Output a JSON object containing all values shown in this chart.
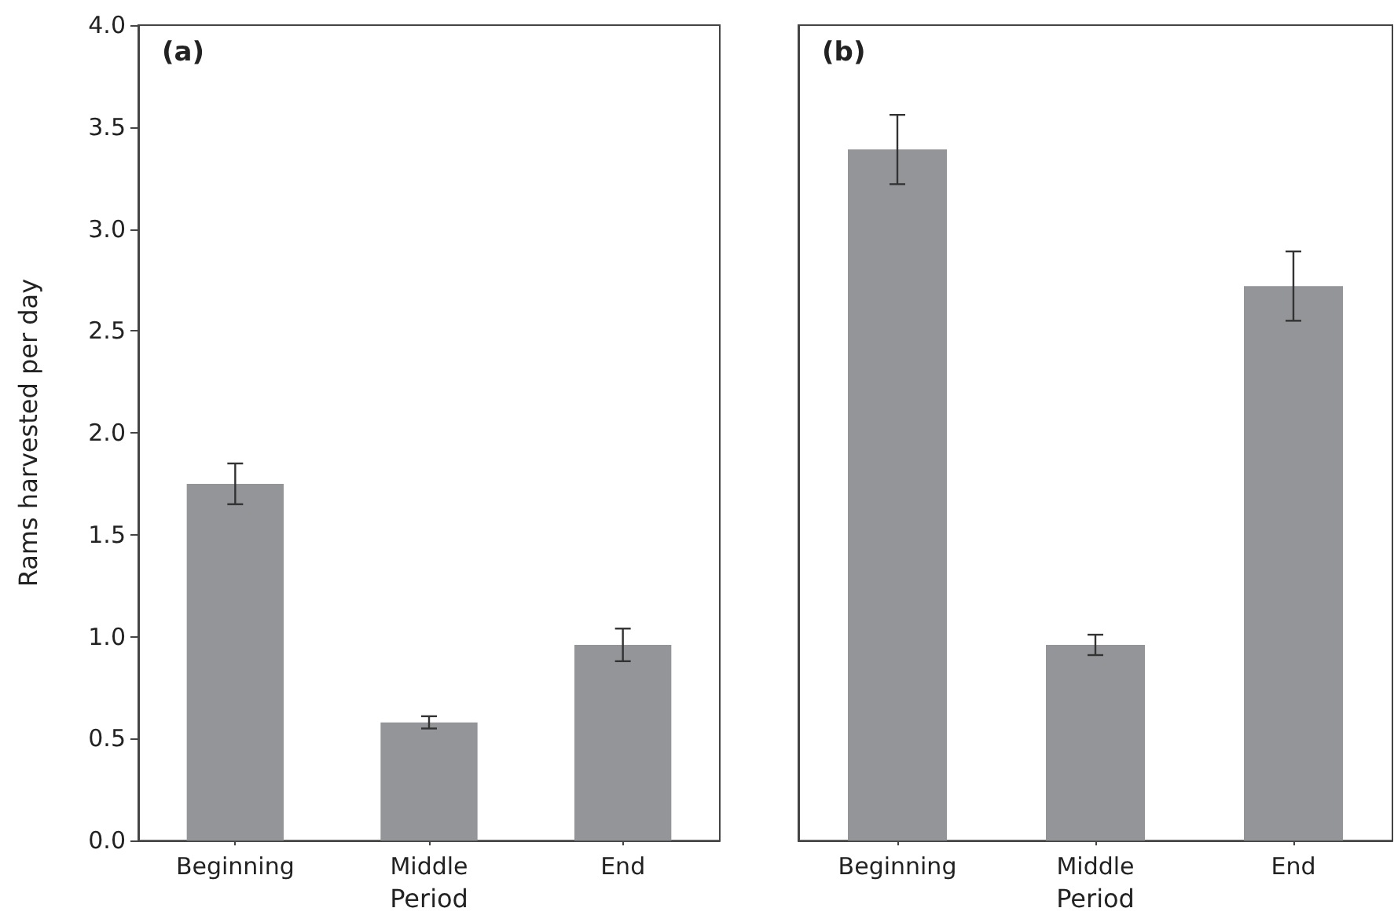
{
  "chart_data": [
    {
      "type": "bar",
      "title": "(a)",
      "xlabel": "Period",
      "ylabel": "Rams harvested per day",
      "categories": [
        "Beginning",
        "Middle",
        "End"
      ],
      "values": [
        1.75,
        0.58,
        0.96
      ],
      "errors": [
        0.1,
        0.03,
        0.08
      ],
      "color": "#939598",
      "ylim": [
        0,
        4
      ],
      "yticks": [
        {
          "value": 0,
          "label": "0.0"
        },
        0.5,
        {
          "value": 1,
          "label": "1.0"
        },
        1.5,
        {
          "value": 2,
          "label": "2.0"
        },
        2.5,
        {
          "value": 3,
          "label": "3.0"
        },
        3.5,
        {
          "value": 4,
          "label": "4.0"
        }
      ],
      "grid": false
    },
    {
      "type": "bar",
      "title": "(b)",
      "xlabel": "Period",
      "categories": [
        "Beginning",
        "Middle",
        "End"
      ],
      "values": [
        3.39,
        0.96,
        2.72
      ],
      "errors": [
        0.17,
        0.05,
        0.17
      ],
      "color": "#939598",
      "ylim": [
        0,
        4
      ],
      "tick_labels": "x",
      "grid": false
    }
  ]
}
